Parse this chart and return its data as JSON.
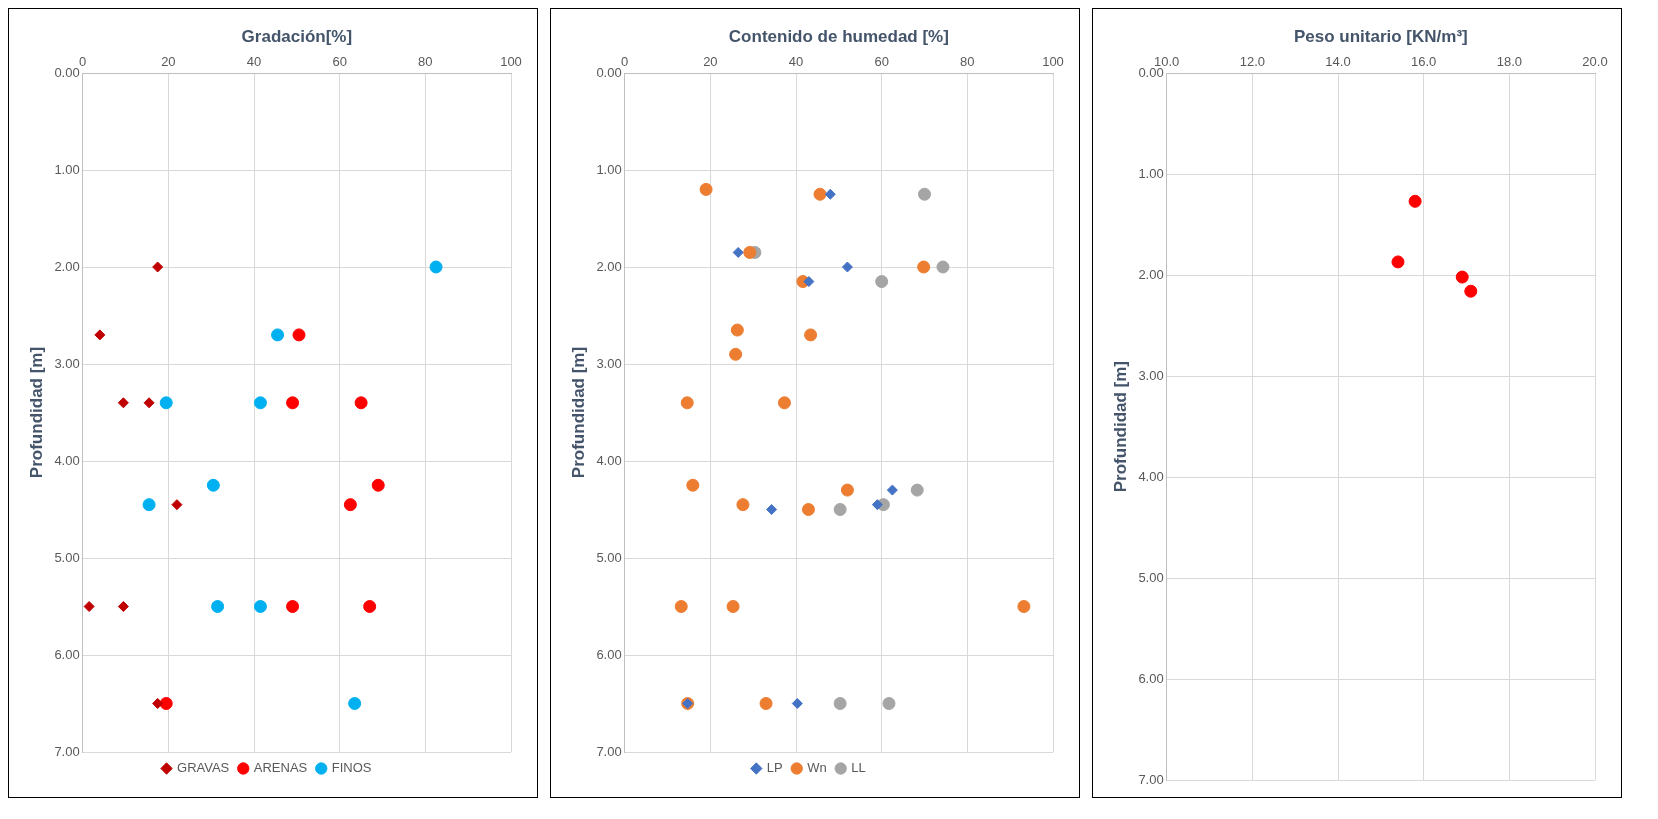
{
  "chart_data": [
    {
      "type": "scatter",
      "xlabel": "Gradación[%]",
      "ylabel": "Profundidad [m]",
      "xlim": [
        0,
        100
      ],
      "xticks": [
        0,
        20,
        40,
        60,
        80,
        100
      ],
      "ylim": [
        7,
        0
      ],
      "yticks": [
        {
          "value": 0,
          "label": "0.00"
        },
        {
          "value": 1,
          "label": "1.00"
        },
        {
          "value": 2,
          "label": "2.00"
        },
        {
          "value": 3,
          "label": "3.00"
        },
        {
          "value": 4,
          "label": "4.00"
        },
        {
          "value": 5,
          "label": "5.00"
        },
        {
          "value": 6,
          "label": "6.00"
        },
        {
          "value": 7,
          "label": "7.00"
        }
      ],
      "grid": true,
      "legend": "bottom",
      "series": [
        {
          "name": "GRAVAS",
          "color": "#c00000",
          "marker": "diamond",
          "x": [
            17.5,
            4,
            9.5,
            15.5,
            22,
            1.5,
            9.5,
            17.5
          ],
          "values": [
            2.0,
            2.7,
            3.4,
            3.4,
            4.45,
            5.5,
            5.5,
            6.5
          ]
        },
        {
          "name": "ARENAS",
          "color": "#ff0000",
          "marker": "circle",
          "x": [
            50.5,
            49,
            65,
            69,
            62.5,
            49,
            67,
            19.5
          ],
          "values": [
            2.7,
            3.4,
            3.4,
            4.25,
            4.45,
            5.5,
            5.5,
            6.5
          ]
        },
        {
          "name": "FINOS",
          "color": "#00b0f0",
          "marker": "circle",
          "x": [
            82.5,
            45.5,
            19.5,
            41.5,
            30.5,
            15.5,
            31.5,
            41.5,
            63.5
          ],
          "values": [
            2.0,
            2.7,
            3.4,
            3.4,
            4.25,
            4.45,
            5.5,
            5.5,
            6.5
          ]
        }
      ]
    },
    {
      "type": "scatter",
      "xlabel": "Contenido de humedad [%]",
      "ylabel": "Profundidad [m]",
      "xlim": [
        0,
        100
      ],
      "xticks": [
        0,
        20,
        40,
        60,
        80,
        100
      ],
      "ylim": [
        7,
        0
      ],
      "yticks": [
        {
          "value": 0,
          "label": "0.00"
        },
        {
          "value": 1,
          "label": "1.00"
        },
        {
          "value": 2,
          "label": "2.00"
        },
        {
          "value": 3,
          "label": "3.00"
        },
        {
          "value": 4,
          "label": "4.00"
        },
        {
          "value": 5,
          "label": "5.00"
        },
        {
          "value": 6,
          "label": "6.00"
        },
        {
          "value": 7,
          "label": "7.00"
        }
      ],
      "grid": true,
      "legend": "bottom",
      "series": [
        {
          "name": "LP",
          "color": "#4472c4",
          "marker": "diamond",
          "x": [
            48,
            26.5,
            52,
            43,
            62.5,
            59,
            34.3,
            14.7,
            40.3
          ],
          "values": [
            1.25,
            1.85,
            2.0,
            2.15,
            4.3,
            4.45,
            4.5,
            6.5,
            6.5
          ]
        },
        {
          "name": "Wn",
          "color": "#ed7d31",
          "marker": "circle",
          "x": [
            19,
            45.6,
            29.2,
            69.8,
            41.6,
            26.3,
            43.4,
            25.9,
            14.6,
            37.3,
            15.9,
            52,
            27.6,
            42.9,
            13.2,
            25.3,
            93.2,
            14.7,
            33
          ],
          "values": [
            1.2,
            1.25,
            1.85,
            2.0,
            2.15,
            2.65,
            2.7,
            2.9,
            3.4,
            3.4,
            4.25,
            4.3,
            4.45,
            4.5,
            5.5,
            5.5,
            5.5,
            6.5,
            6.5
          ]
        },
        {
          "name": "LL",
          "color": "#a5a5a5",
          "marker": "circle",
          "x": [
            70,
            30.4,
            74.3,
            60,
            68.3,
            60.4,
            50.3,
            50.3,
            61.7
          ],
          "values": [
            1.25,
            1.85,
            2.0,
            2.15,
            4.3,
            4.45,
            4.5,
            6.5,
            6.5
          ]
        }
      ]
    },
    {
      "type": "scatter",
      "xlabel": "Peso unitario [KN/m³]",
      "ylabel": "Profundidad [m]",
      "xlim": [
        10,
        20
      ],
      "xticks": [
        {
          "value": 10,
          "label": "10.0"
        },
        {
          "value": 12,
          "label": "12.0"
        },
        {
          "value": 14,
          "label": "14.0"
        },
        {
          "value": 16,
          "label": "16.0"
        },
        {
          "value": 18,
          "label": "18.0"
        },
        {
          "value": 20,
          "label": "20.0"
        }
      ],
      "ylim": [
        7,
        0
      ],
      "yticks": [
        {
          "value": 0,
          "label": "0.00"
        },
        {
          "value": 1,
          "label": "1.00"
        },
        {
          "value": 2,
          "label": "2.00"
        },
        {
          "value": 3,
          "label": "3.00"
        },
        {
          "value": 4,
          "label": "4.00"
        },
        {
          "value": 5,
          "label": "5.00"
        },
        {
          "value": 6,
          "label": "6.00"
        },
        {
          "value": 7,
          "label": "7.00"
        }
      ],
      "grid": true,
      "series": [
        {
          "color": "#ff0000",
          "marker": "circle",
          "x": [
            15.8,
            15.4,
            16.9,
            17.1
          ],
          "values": [
            1.27,
            1.87,
            2.02,
            2.16
          ]
        }
      ]
    }
  ]
}
